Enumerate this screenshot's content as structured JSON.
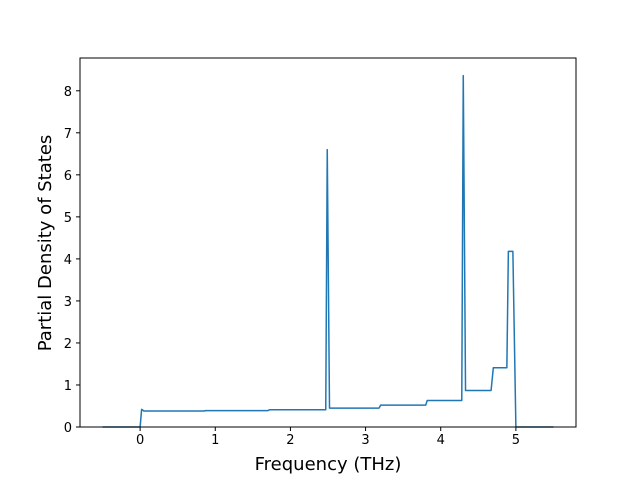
{
  "chart_data": {
    "type": "line",
    "x_label": "Frequency (THz)",
    "y_label": "Partial Density of States",
    "series": [
      {
        "color": "#1f77b4",
        "x": [
          -0.5,
          0,
          0.02,
          0.05,
          0.85,
          0.87,
          1.7,
          1.72,
          2.47,
          2.49,
          2.52,
          3.18,
          3.2,
          3.8,
          3.82,
          4.28,
          4.3,
          4.33,
          4.67,
          4.7,
          4.88,
          4.9,
          4.96,
          5.0,
          5.5
        ],
        "values": [
          0,
          0,
          0.42,
          0.38,
          0.38,
          0.39,
          0.39,
          0.41,
          0.41,
          6.6,
          0.45,
          0.45,
          0.52,
          0.52,
          0.63,
          0.63,
          8.36,
          0.87,
          0.87,
          1.41,
          1.41,
          4.18,
          4.18,
          0,
          0
        ]
      }
    ],
    "xlim": [
      -0.8,
      5.8
    ],
    "xticks": [
      0,
      1,
      2,
      3,
      4,
      5
    ],
    "ylim": [
      0,
      8.78
    ],
    "yticks": [
      0,
      1,
      2,
      3,
      4,
      5,
      6,
      7,
      8
    ]
  }
}
